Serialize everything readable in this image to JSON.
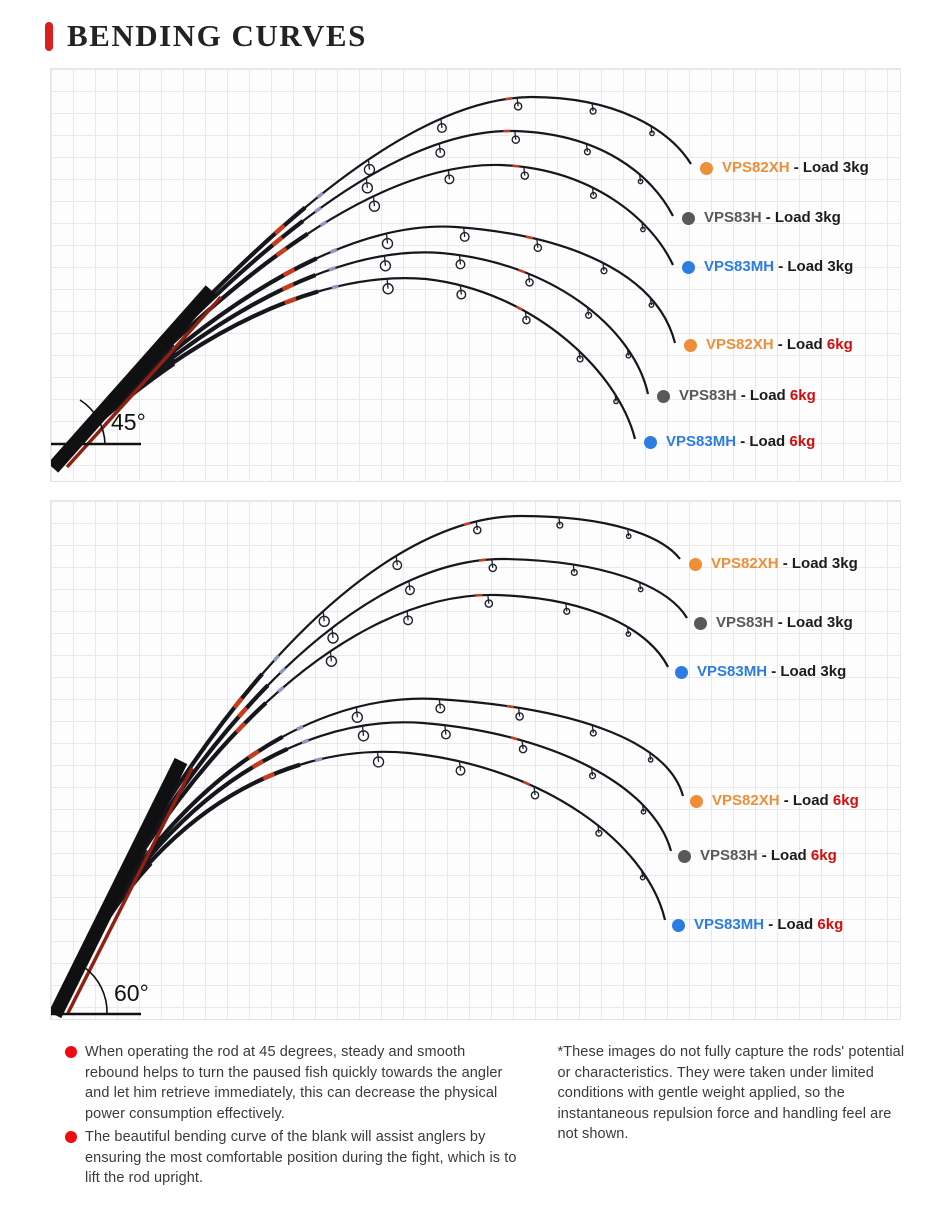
{
  "title": {
    "text": "BENDING CURVES",
    "accent_color": "#d8201f"
  },
  "colors": {
    "orange": "#ef8e38",
    "gray": "#58595b",
    "blue": "#2b7de1",
    "red_load": "#d40c0c",
    "black_load": "#1c1c1e",
    "bullet_red": "#ee0c12",
    "rod_black": "#16161d"
  },
  "panels": [
    {
      "angle_label": "45°",
      "legends": [
        {
          "model": "VPS82XH",
          "sep": "-",
          "load_word": "Load",
          "amount": "3kg",
          "model_color": "#ef8e38",
          "amount_color": "#1c1c1e"
        },
        {
          "model": "VPS83H",
          "sep": "-",
          "load_word": "Load",
          "amount": "3kg",
          "model_color": "#58595b",
          "amount_color": "#1c1c1e"
        },
        {
          "model": "VPS83MH",
          "sep": "-",
          "load_word": "Load",
          "amount": "3kg",
          "model_color": "#2b7de1",
          "amount_color": "#1c1c1e"
        },
        {
          "model": "VPS82XH",
          "sep": "-",
          "load_word": "Load",
          "amount": "6kg",
          "model_color": "#ef8e38",
          "amount_color": "#d40c0c"
        },
        {
          "model": "VPS83H",
          "sep": "-",
          "load_word": "Load",
          "amount": "6kg",
          "model_color": "#58595b",
          "amount_color": "#d40c0c"
        },
        {
          "model": "VPS83MH",
          "sep": "-",
          "load_word": "Load",
          "amount": "6kg",
          "model_color": "#2b7de1",
          "amount_color": "#d40c0c"
        }
      ]
    },
    {
      "angle_label": "60°",
      "legends": [
        {
          "model": "VPS82XH",
          "sep": "-",
          "load_word": "Load",
          "amount": "3kg",
          "model_color": "#ef8e38",
          "amount_color": "#1c1c1e"
        },
        {
          "model": "VPS83H",
          "sep": "-",
          "load_word": "Load",
          "amount": "3kg",
          "model_color": "#58595b",
          "amount_color": "#1c1c1e"
        },
        {
          "model": "VPS83MH",
          "sep": "-",
          "load_word": "Load",
          "amount": "3kg",
          "model_color": "#2b7de1",
          "amount_color": "#1c1c1e"
        },
        {
          "model": "VPS82XH",
          "sep": "-",
          "load_word": "Load",
          "amount": "6kg",
          "model_color": "#ef8e38",
          "amount_color": "#d40c0c"
        },
        {
          "model": "VPS83H",
          "sep": "-",
          "load_word": "Load",
          "amount": "6kg",
          "model_color": "#58595b",
          "amount_color": "#d40c0c"
        },
        {
          "model": "VPS83MH",
          "sep": "-",
          "load_word": "Load",
          "amount": "6kg",
          "model_color": "#2b7de1",
          "amount_color": "#d40c0c"
        }
      ]
    }
  ],
  "notes": {
    "bullet_items": [
      "When operating the rod at 45 degrees, steady and smooth rebound helps to turn the paused fish quickly towards the angler and let him retrieve immediately, this can decrease the physical power consumption effectively.",
      "The beautiful bending curve of the blank will assist anglers by ensuring the most comfortable position during the fight, which is to lift the rod upright."
    ],
    "footnote": "*These images do not fully capture the rods' potential or characteristics. They were taken under limited conditions with gentle weight applied, so the instantaneous repulsion force and handling feel are not shown."
  }
}
